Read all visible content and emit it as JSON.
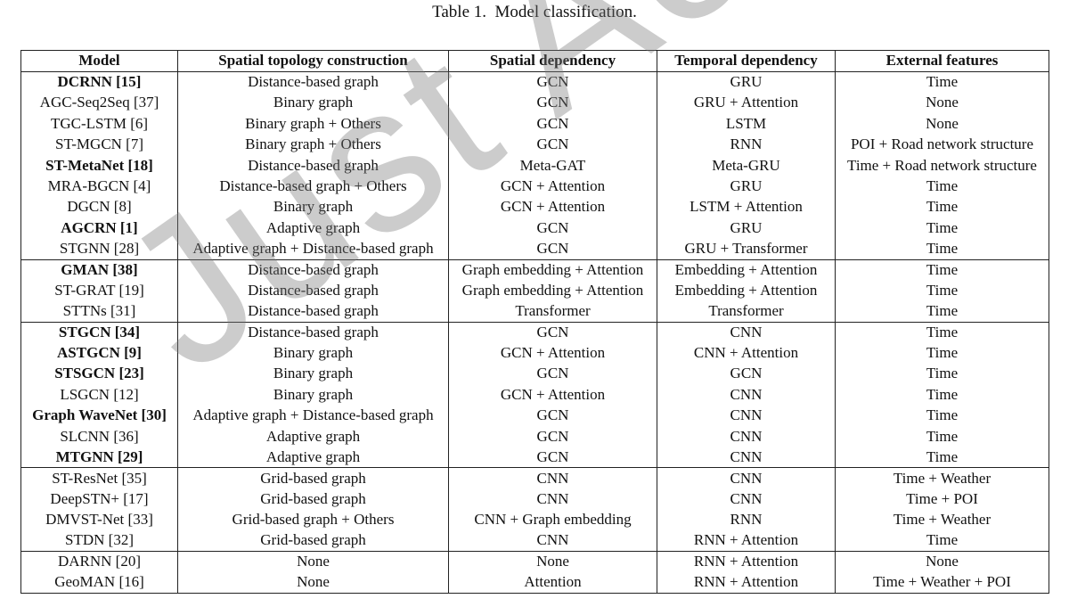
{
  "caption": {
    "label": "Table 1.",
    "text": "Model classification."
  },
  "watermark": "Just Accepted",
  "table": {
    "headers": [
      "Model",
      "Spatial topology construction",
      "Spatial dependency",
      "Temporal dependency",
      "External features"
    ],
    "rows": [
      {
        "group_start": true,
        "bold": true,
        "cells": [
          "DCRNN [15]",
          "Distance-based graph",
          "GCN",
          "GRU",
          "Time"
        ]
      },
      {
        "group_start": false,
        "bold": false,
        "cells": [
          "AGC-Seq2Seq [37]",
          "Binary graph",
          "GCN",
          "GRU + Attention",
          "None"
        ]
      },
      {
        "group_start": false,
        "bold": false,
        "cells": [
          "TGC-LSTM [6]",
          "Binary graph + Others",
          "GCN",
          "LSTM",
          "None"
        ]
      },
      {
        "group_start": false,
        "bold": false,
        "cells": [
          "ST-MGCN [7]",
          "Binary graph + Others",
          "GCN",
          "RNN",
          "POI + Road network structure"
        ]
      },
      {
        "group_start": false,
        "bold": true,
        "cells": [
          "ST-MetaNet [18]",
          "Distance-based graph",
          "Meta-GAT",
          "Meta-GRU",
          "Time + Road network structure"
        ]
      },
      {
        "group_start": false,
        "bold": false,
        "cells": [
          "MRA-BGCN [4]",
          "Distance-based graph + Others",
          "GCN + Attention",
          "GRU",
          "Time"
        ]
      },
      {
        "group_start": false,
        "bold": false,
        "cells": [
          "DGCN [8]",
          "Binary graph",
          "GCN + Attention",
          "LSTM + Attention",
          "Time"
        ]
      },
      {
        "group_start": false,
        "bold": true,
        "cells": [
          "AGCRN [1]",
          "Adaptive graph",
          "GCN",
          "GRU",
          "Time"
        ]
      },
      {
        "group_start": false,
        "bold": false,
        "cells": [
          "STGNN [28]",
          "Adaptive graph + Distance-based graph",
          "GCN",
          "GRU + Transformer",
          "Time"
        ]
      },
      {
        "group_start": true,
        "bold": true,
        "cells": [
          "GMAN [38]",
          "Distance-based graph",
          "Graph embedding + Attention",
          "Embedding + Attention",
          "Time"
        ]
      },
      {
        "group_start": false,
        "bold": false,
        "cells": [
          "ST-GRAT [19]",
          "Distance-based graph",
          "Graph embedding + Attention",
          "Embedding + Attention",
          "Time"
        ]
      },
      {
        "group_start": false,
        "bold": false,
        "cells": [
          "STTNs [31]",
          "Distance-based graph",
          "Transformer",
          "Transformer",
          "Time"
        ]
      },
      {
        "group_start": true,
        "bold": true,
        "cells": [
          "STGCN [34]",
          "Distance-based graph",
          "GCN",
          "CNN",
          "Time"
        ]
      },
      {
        "group_start": false,
        "bold": true,
        "cells": [
          "ASTGCN [9]",
          "Binary graph",
          "GCN + Attention",
          "CNN + Attention",
          "Time"
        ]
      },
      {
        "group_start": false,
        "bold": true,
        "cells": [
          "STSGCN [23]",
          "Binary graph",
          "GCN",
          "GCN",
          "Time"
        ]
      },
      {
        "group_start": false,
        "bold": false,
        "cells": [
          "LSGCN [12]",
          "Binary graph",
          "GCN + Attention",
          "CNN",
          "Time"
        ]
      },
      {
        "group_start": false,
        "bold": true,
        "cells": [
          "Graph WaveNet [30]",
          "Adaptive graph + Distance-based graph",
          "GCN",
          "CNN",
          "Time"
        ]
      },
      {
        "group_start": false,
        "bold": false,
        "cells": [
          "SLCNN [36]",
          "Adaptive graph",
          "GCN",
          "CNN",
          "Time"
        ]
      },
      {
        "group_start": false,
        "bold": true,
        "cells": [
          "MTGNN [29]",
          "Adaptive graph",
          "GCN",
          "CNN",
          "Time"
        ]
      },
      {
        "group_start": true,
        "bold": false,
        "cells": [
          "ST-ResNet [35]",
          "Grid-based graph",
          "CNN",
          "CNN",
          "Time + Weather"
        ]
      },
      {
        "group_start": false,
        "bold": false,
        "cells": [
          "DeepSTN+ [17]",
          "Grid-based graph",
          "CNN",
          "CNN",
          "Time + POI"
        ]
      },
      {
        "group_start": false,
        "bold": false,
        "cells": [
          "DMVST-Net [33]",
          "Grid-based graph + Others",
          "CNN + Graph embedding",
          "RNN",
          "Time + Weather"
        ]
      },
      {
        "group_start": false,
        "bold": false,
        "cells": [
          "STDN [32]",
          "Grid-based graph",
          "CNN",
          "RNN + Attention",
          "Time"
        ]
      },
      {
        "group_start": true,
        "bold": false,
        "cells": [
          "DARNN [20]",
          "None",
          "None",
          "RNN + Attention",
          "None"
        ]
      },
      {
        "group_start": false,
        "bold": false,
        "cells": [
          "GeoMAN [16]",
          "None",
          "Attention",
          "RNN + Attention",
          "Time + Weather + POI"
        ]
      }
    ]
  }
}
